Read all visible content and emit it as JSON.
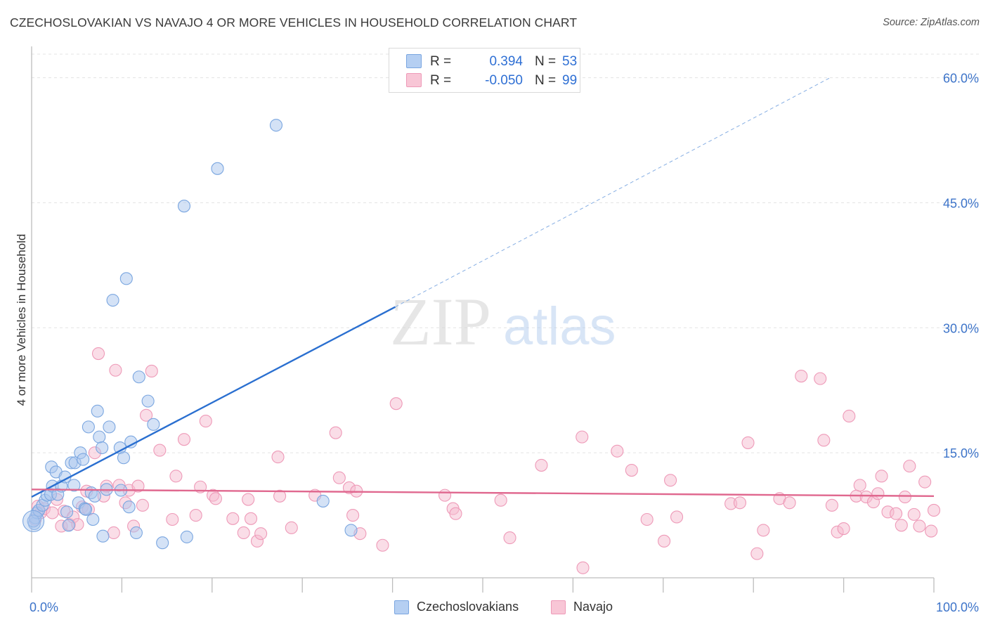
{
  "header": {
    "title": "CZECHOSLOVAKIAN VS NAVAJO 4 OR MORE VEHICLES IN HOUSEHOLD CORRELATION CHART",
    "source": "Source: ZipAtlas.com"
  },
  "legend": {
    "rows": [
      {
        "r_label": "R =",
        "r_value": "0.394",
        "n_label": "N =",
        "n_value": "53"
      },
      {
        "r_label": "R =",
        "r_value": "-0.050",
        "n_label": "N =",
        "n_value": "99"
      }
    ]
  },
  "watermark": {
    "zip": "ZIP",
    "atlas": "atlas"
  },
  "colors": {
    "czech_fill": "#a9c6ee",
    "czech_stroke": "#7aa6e0",
    "czech_line": "#2a6fd0",
    "navajo_fill": "#f6bcd0",
    "navajo_stroke": "#ee9ab8",
    "navajo_line": "#e0688f",
    "axis_text": "#3d74c9",
    "grid": "#e3e3e3"
  },
  "chart_data": {
    "type": "scatter",
    "title": "CZECHOSLOVAKIAN VS NAVAJO 4 OR MORE VEHICLES IN HOUSEHOLD CORRELATION CHART",
    "xlabel": "",
    "ylabel": "4 or more Vehicles in Household",
    "xlim": [
      0,
      100
    ],
    "ylim": [
      0,
      63
    ],
    "x_tick_labels": [
      {
        "value": 0,
        "label": "0.0%"
      },
      {
        "value": 100,
        "label": "100.0%"
      }
    ],
    "y_tick_labels": [
      {
        "value": 15,
        "label": "15.0%"
      },
      {
        "value": 30,
        "label": "30.0%"
      },
      {
        "value": 45,
        "label": "45.0%"
      },
      {
        "value": 60,
        "label": "60.0%"
      }
    ],
    "x_minor_ticks": [
      0,
      10,
      20,
      30,
      40,
      50,
      60,
      70,
      80,
      90,
      100
    ],
    "grid": true,
    "legend_position": "bottom-center",
    "series": [
      {
        "name": "Czechoslovakians",
        "r": 0.394,
        "n": 53,
        "trend": {
          "x0": 0,
          "y0": 9.7,
          "x1": 40.3,
          "y1": 32.5,
          "dash_to_x": 88.5,
          "dash_to_y": 60.0
        },
        "points": [
          [
            0.3,
            6.5
          ],
          [
            0.4,
            7.2
          ],
          [
            0.6,
            7.8
          ],
          [
            0.8,
            8.1
          ],
          [
            1.2,
            8.7
          ],
          [
            1.5,
            9.3
          ],
          [
            1.7,
            9.9
          ],
          [
            2.1,
            10.0
          ],
          [
            2.2,
            13.3
          ],
          [
            2.3,
            11.0
          ],
          [
            2.7,
            12.7
          ],
          [
            2.9,
            10.0
          ],
          [
            3.3,
            11.0
          ],
          [
            3.7,
            12.1
          ],
          [
            3.9,
            7.9
          ],
          [
            4.1,
            6.3
          ],
          [
            4.4,
            13.8
          ],
          [
            4.7,
            11.1
          ],
          [
            4.8,
            13.8
          ],
          [
            5.2,
            9.0
          ],
          [
            5.4,
            15.0
          ],
          [
            5.7,
            14.2
          ],
          [
            5.9,
            8.3
          ],
          [
            6.3,
            18.1
          ],
          [
            6.6,
            10.2
          ],
          [
            6.8,
            7.0
          ],
          [
            7.0,
            9.8
          ],
          [
            7.3,
            20.0
          ],
          [
            7.5,
            16.9
          ],
          [
            7.8,
            15.6
          ],
          [
            7.9,
            5.0
          ],
          [
            8.3,
            10.6
          ],
          [
            8.6,
            18.1
          ],
          [
            9.0,
            33.3
          ],
          [
            9.8,
            15.6
          ],
          [
            9.9,
            10.5
          ],
          [
            10.2,
            14.4
          ],
          [
            10.5,
            35.9
          ],
          [
            10.8,
            8.5
          ],
          [
            11.0,
            16.3
          ],
          [
            11.6,
            5.4
          ],
          [
            11.9,
            24.1
          ],
          [
            12.9,
            21.2
          ],
          [
            13.5,
            18.4
          ],
          [
            14.5,
            4.2
          ],
          [
            16.9,
            44.6
          ],
          [
            17.2,
            4.9
          ],
          [
            20.6,
            49.1
          ],
          [
            27.1,
            54.3
          ],
          [
            32.3,
            9.2
          ],
          [
            35.4,
            5.7
          ],
          [
            0.2,
            6.8
          ],
          [
            6.0,
            8.2
          ]
        ]
      },
      {
        "name": "Navajo",
        "r": -0.05,
        "n": 99,
        "trend": {
          "x0": 0,
          "y0": 10.6,
          "x1": 100,
          "y1": 9.8
        },
        "points": [
          [
            0.4,
            7.0
          ],
          [
            0.7,
            8.6
          ],
          [
            1.0,
            7.8
          ],
          [
            1.4,
            8.3
          ],
          [
            2.3,
            7.8
          ],
          [
            2.8,
            9.4
          ],
          [
            3.3,
            6.2
          ],
          [
            3.6,
            8.0
          ],
          [
            4.2,
            6.4
          ],
          [
            4.6,
            7.3
          ],
          [
            5.1,
            6.4
          ],
          [
            5.6,
            8.5
          ],
          [
            6.1,
            10.4
          ],
          [
            6.3,
            8.2
          ],
          [
            7.0,
            15.0
          ],
          [
            7.4,
            26.9
          ],
          [
            8.0,
            9.8
          ],
          [
            8.3,
            11.0
          ],
          [
            9.1,
            5.4
          ],
          [
            9.3,
            24.9
          ],
          [
            9.7,
            11.1
          ],
          [
            10.4,
            9.0
          ],
          [
            10.8,
            10.5
          ],
          [
            11.3,
            6.2
          ],
          [
            11.8,
            11.0
          ],
          [
            12.3,
            8.7
          ],
          [
            12.7,
            19.5
          ],
          [
            13.3,
            24.8
          ],
          [
            14.2,
            15.3
          ],
          [
            15.6,
            7.0
          ],
          [
            16.0,
            12.2
          ],
          [
            16.9,
            16.6
          ],
          [
            18.2,
            7.5
          ],
          [
            18.7,
            10.9
          ],
          [
            19.3,
            18.8
          ],
          [
            20.1,
            9.9
          ],
          [
            20.4,
            9.5
          ],
          [
            22.3,
            7.1
          ],
          [
            23.5,
            5.4
          ],
          [
            24.0,
            9.4
          ],
          [
            24.3,
            7.1
          ],
          [
            25.0,
            4.4
          ],
          [
            25.4,
            5.3
          ],
          [
            27.3,
            14.5
          ],
          [
            27.5,
            9.8
          ],
          [
            28.8,
            6.0
          ],
          [
            31.4,
            9.9
          ],
          [
            33.7,
            17.4
          ],
          [
            34.1,
            12.0
          ],
          [
            35.2,
            10.8
          ],
          [
            35.6,
            7.5
          ],
          [
            36.0,
            10.4
          ],
          [
            36.4,
            5.3
          ],
          [
            38.9,
            3.9
          ],
          [
            40.4,
            20.9
          ],
          [
            45.8,
            9.9
          ],
          [
            46.7,
            8.3
          ],
          [
            47.0,
            7.7
          ],
          [
            52.0,
            9.3
          ],
          [
            53.0,
            4.8
          ],
          [
            56.5,
            13.5
          ],
          [
            61.0,
            16.9
          ],
          [
            61.1,
            1.2
          ],
          [
            64.9,
            15.2
          ],
          [
            66.5,
            12.9
          ],
          [
            68.2,
            7.0
          ],
          [
            70.1,
            4.4
          ],
          [
            70.8,
            11.7
          ],
          [
            71.5,
            7.3
          ],
          [
            77.5,
            8.9
          ],
          [
            78.5,
            9.0
          ],
          [
            79.4,
            16.2
          ],
          [
            80.4,
            2.9
          ],
          [
            81.1,
            5.7
          ],
          [
            82.9,
            9.5
          ],
          [
            84.0,
            9.0
          ],
          [
            85.3,
            24.2
          ],
          [
            87.4,
            23.9
          ],
          [
            87.8,
            16.5
          ],
          [
            88.7,
            8.7
          ],
          [
            89.3,
            5.5
          ],
          [
            90.0,
            5.9
          ],
          [
            90.6,
            19.4
          ],
          [
            91.4,
            9.8
          ],
          [
            91.8,
            11.1
          ],
          [
            92.5,
            9.7
          ],
          [
            93.3,
            9.1
          ],
          [
            93.8,
            10.1
          ],
          [
            94.2,
            12.2
          ],
          [
            94.9,
            7.9
          ],
          [
            95.8,
            7.7
          ],
          [
            96.4,
            6.3
          ],
          [
            96.8,
            9.7
          ],
          [
            97.3,
            13.4
          ],
          [
            97.8,
            7.6
          ],
          [
            98.4,
            6.2
          ],
          [
            99.0,
            11.5
          ],
          [
            99.7,
            5.6
          ],
          [
            100.0,
            8.1
          ]
        ]
      }
    ]
  }
}
